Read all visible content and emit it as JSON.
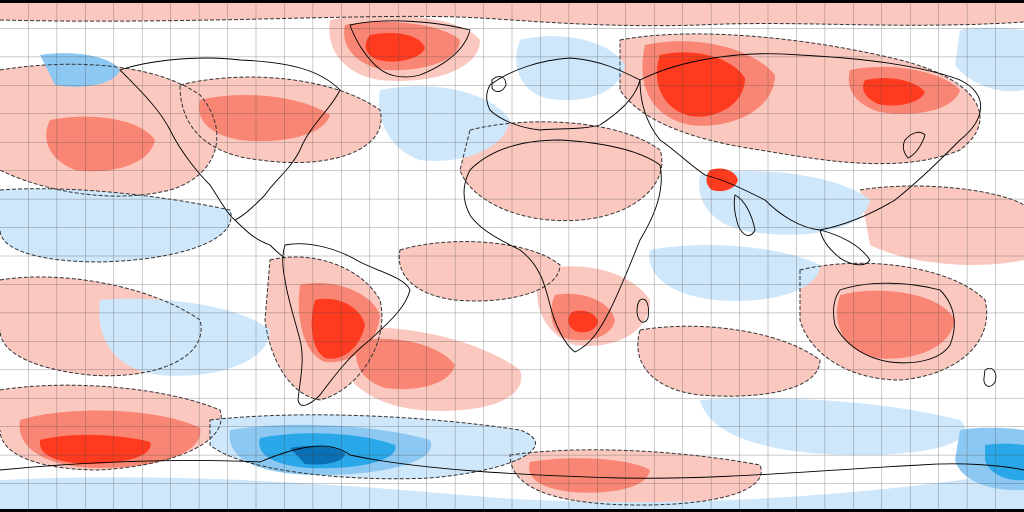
{
  "map": {
    "projection": "equirectangular",
    "grid_spacing_degrees": 10,
    "palette": {
      "warm_strong": "#ff3b1f",
      "warm_mid": "#f98674",
      "warm_light": "#fbc8c0",
      "cool_light": "#cfe7fb",
      "cool_mid": "#8cc8f2",
      "cool_strong": "#2aa7e8",
      "cool_deep": "#0a6fb5",
      "background": "#ffffff",
      "coastline": "#000000",
      "gridline": "#444444",
      "border": "#000000"
    }
  }
}
